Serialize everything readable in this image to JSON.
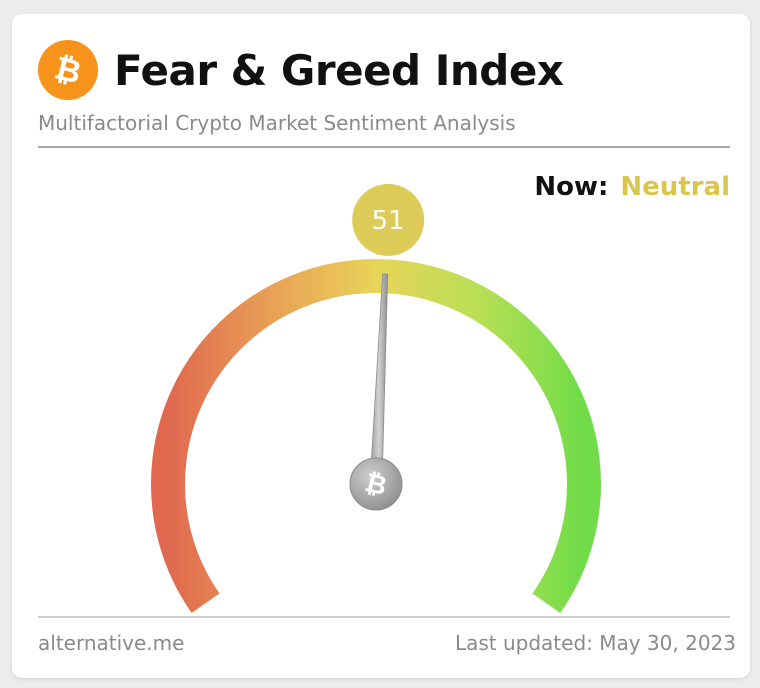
{
  "header": {
    "logo_icon": "bitcoin-icon",
    "title": "Fear & Greed Index",
    "subtitle": "Multifactorial Crypto Market Sentiment Analysis"
  },
  "status": {
    "label": "Now:",
    "value": "Neutral",
    "value_color": "#d8c74a"
  },
  "gauge": {
    "value": 51,
    "min": 0,
    "max": 100,
    "bubble_color": "#dccb56",
    "color_low": "#e0684f",
    "color_mid": "#e8d458",
    "color_high": "#6fdc48",
    "hub_icon": "bitcoin-icon"
  },
  "footer": {
    "source": "alternative.me",
    "updated": "Last updated: May 30, 2023"
  }
}
